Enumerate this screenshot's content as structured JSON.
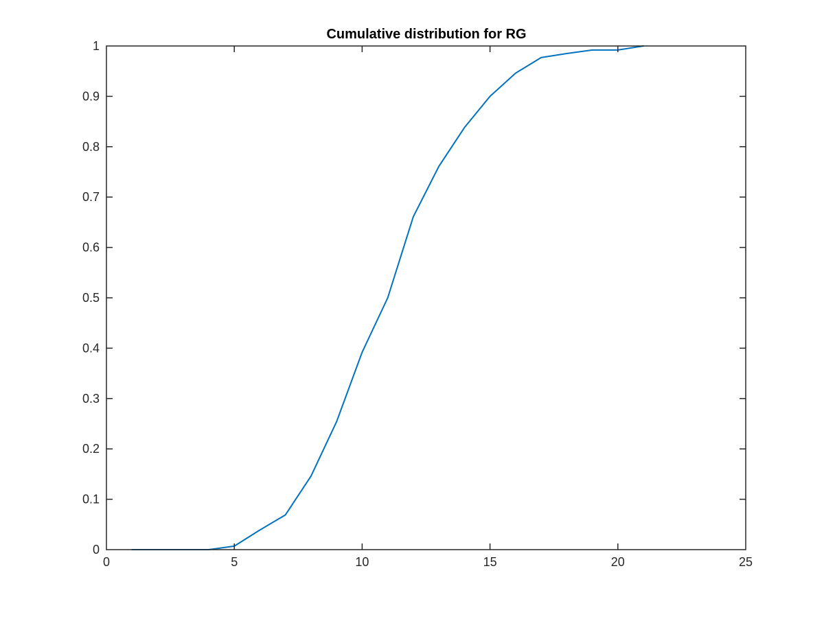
{
  "chart_data": {
    "type": "line",
    "title": "Cumulative distribution for RG",
    "xlabel": "",
    "ylabel": "",
    "xlim": [
      0,
      25
    ],
    "ylim": [
      0,
      1
    ],
    "xticks": [
      0,
      5,
      10,
      15,
      20,
      25
    ],
    "xtick_labels": [
      "0",
      "5",
      "10",
      "15",
      "20",
      "25"
    ],
    "yticks": [
      0,
      0.1,
      0.2,
      0.3,
      0.4,
      0.5,
      0.6,
      0.7,
      0.8,
      0.9,
      1
    ],
    "ytick_labels": [
      "0",
      "0.1",
      "0.2",
      "0.3",
      "0.4",
      "0.5",
      "0.6",
      "0.7",
      "0.8",
      "0.9",
      "1"
    ],
    "grid": false,
    "legend": "none",
    "series": [
      {
        "color": "#0072bd",
        "x": [
          1,
          2,
          3,
          4,
          5,
          6,
          7,
          8,
          9,
          10,
          11,
          12,
          13,
          14,
          15,
          16,
          17,
          18,
          19,
          20,
          21
        ],
        "y": [
          0,
          0,
          0,
          0,
          0.007,
          0.039,
          0.069,
          0.146,
          0.254,
          0.392,
          0.5,
          0.661,
          0.761,
          0.838,
          0.9,
          0.946,
          0.977,
          0.985,
          0.992,
          0.992,
          1
        ]
      }
    ]
  }
}
